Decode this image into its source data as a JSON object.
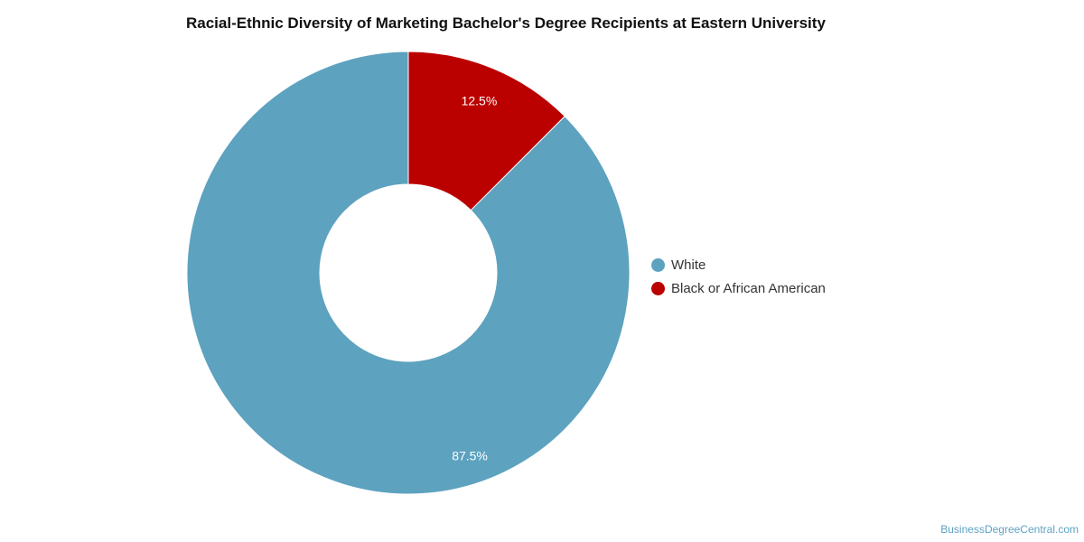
{
  "chart_data": {
    "type": "pie",
    "donut": true,
    "title": "Racial-Ethnic Diversity of Marketing Bachelor's Degree Recipients at Eastern University",
    "categories": [
      "White",
      "Black or African American"
    ],
    "values": [
      87.5,
      12.5
    ],
    "data_labels": [
      "87.5%",
      "12.5%"
    ],
    "colors": [
      "#5da2bf",
      "#bb0000"
    ],
    "legend_position": "right"
  },
  "watermark": "BusinessDegreeCentral.com"
}
